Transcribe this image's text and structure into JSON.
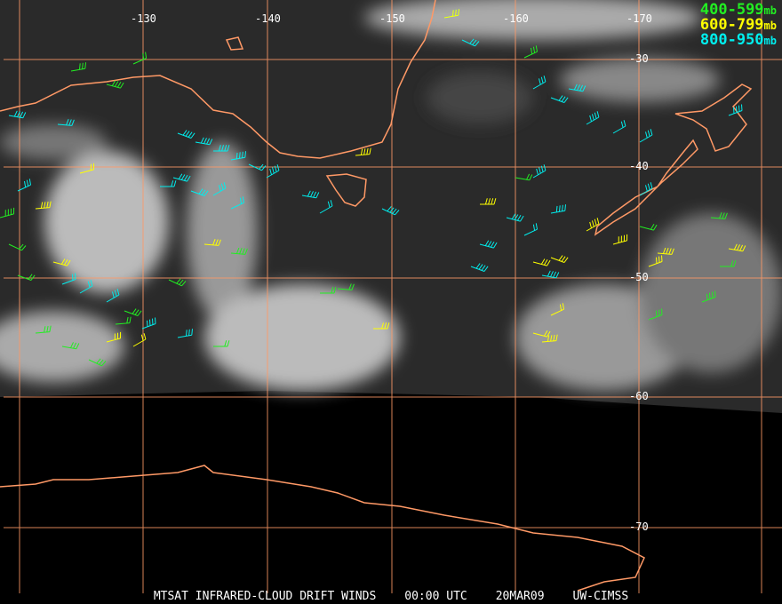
{
  "legend": [
    {
      "range": "400-599",
      "unit": "mb",
      "color": "#22ee22"
    },
    {
      "range": "600-799",
      "unit": "mb",
      "color": "#ffff00"
    },
    {
      "range": "800-950",
      "unit": "mb",
      "color": "#00eeee"
    }
  ],
  "longitude_labels": [
    "-130",
    "-140",
    "-150",
    "-160",
    "-170"
  ],
  "latitude_labels": [
    "-30",
    "-40",
    "-50",
    "-60",
    "-70"
  ],
  "footer": {
    "product": "MTSAT INFRARED-CLOUD DRIFT WINDS",
    "time": "00:00 UTC",
    "date": "20MAR09",
    "source": "UW-CIMSS"
  },
  "colors": {
    "coastline": "#ff9966",
    "grid": "#ff9966",
    "background": "#000000"
  }
}
